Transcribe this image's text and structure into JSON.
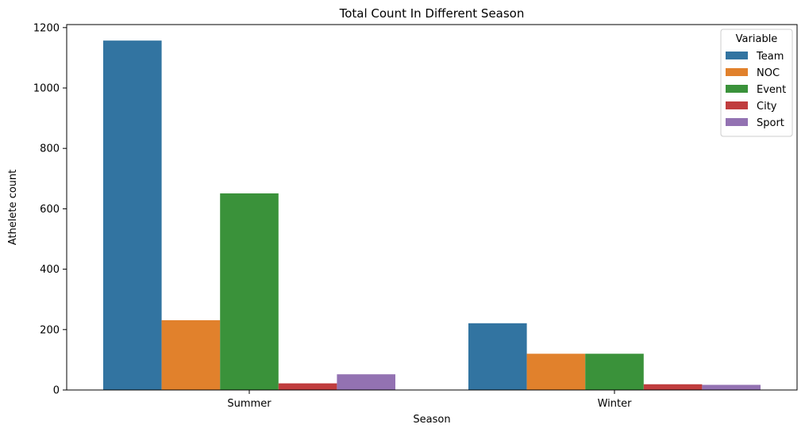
{
  "chart_data": {
    "type": "bar",
    "title": "Total Count In Different Season",
    "xlabel": "Season",
    "ylabel": "Athelete count",
    "categories": [
      "Summer",
      "Winter"
    ],
    "ylim": [
      0,
      1210
    ],
    "yticks": [
      0,
      200,
      400,
      600,
      800,
      1000,
      1200
    ],
    "grid": false,
    "legend": {
      "title": "Variable",
      "placement": "top-right"
    },
    "series": [
      {
        "name": "Team",
        "color": "#3274a1",
        "values": [
          1157,
          221
        ]
      },
      {
        "name": "NOC",
        "color": "#e1812c",
        "values": [
          231,
          120
        ]
      },
      {
        "name": "Event",
        "color": "#3a923a",
        "values": [
          651,
          120
        ]
      },
      {
        "name": "City",
        "color": "#c03d3e",
        "values": [
          22,
          19
        ]
      },
      {
        "name": "Sport",
        "color": "#9372b2",
        "values": [
          52,
          17
        ]
      }
    ]
  }
}
